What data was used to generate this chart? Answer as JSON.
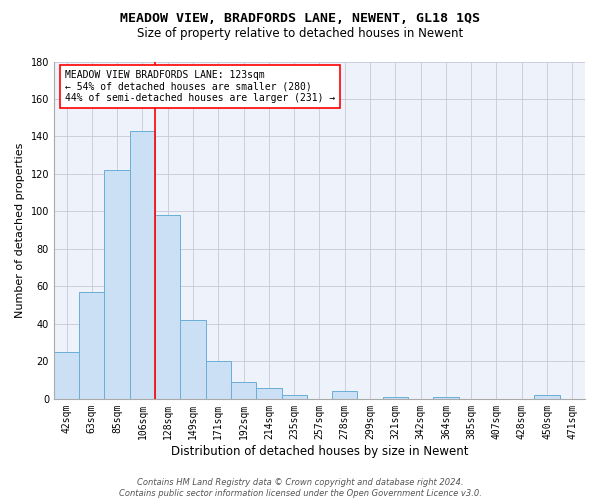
{
  "title": "MEADOW VIEW, BRADFORDS LANE, NEWENT, GL18 1QS",
  "subtitle": "Size of property relative to detached houses in Newent",
  "xlabel": "Distribution of detached houses by size in Newent",
  "ylabel": "Number of detached properties",
  "bar_labels": [
    "42sqm",
    "63sqm",
    "85sqm",
    "106sqm",
    "128sqm",
    "149sqm",
    "171sqm",
    "192sqm",
    "214sqm",
    "235sqm",
    "257sqm",
    "278sqm",
    "299sqm",
    "321sqm",
    "342sqm",
    "364sqm",
    "385sqm",
    "407sqm",
    "428sqm",
    "450sqm",
    "471sqm"
  ],
  "bar_values": [
    25,
    57,
    122,
    143,
    98,
    42,
    20,
    9,
    6,
    2,
    0,
    4,
    0,
    1,
    0,
    1,
    0,
    0,
    0,
    2,
    0
  ],
  "bar_color": "#cce0f5",
  "bar_edgecolor": "#6aaed6",
  "vline_x": 3.5,
  "vline_color": "red",
  "annotation_text": "MEADOW VIEW BRADFORDS LANE: 123sqm\n← 54% of detached houses are smaller (280)\n44% of semi-detached houses are larger (231) →",
  "annotation_box_color": "white",
  "annotation_box_edgecolor": "red",
  "ylim": [
    0,
    180
  ],
  "yticks": [
    0,
    20,
    40,
    60,
    80,
    100,
    120,
    140,
    160,
    180
  ],
  "grid_color": "#c8c8d8",
  "background_color": "#eef2fa",
  "footer_line1": "Contains HM Land Registry data © Crown copyright and database right 2024.",
  "footer_line2": "Contains public sector information licensed under the Open Government Licence v3.0.",
  "title_fontsize": 9.5,
  "subtitle_fontsize": 8.5,
  "xlabel_fontsize": 8.5,
  "ylabel_fontsize": 8,
  "tick_fontsize": 7,
  "annotation_fontsize": 7,
  "footer_fontsize": 6
}
